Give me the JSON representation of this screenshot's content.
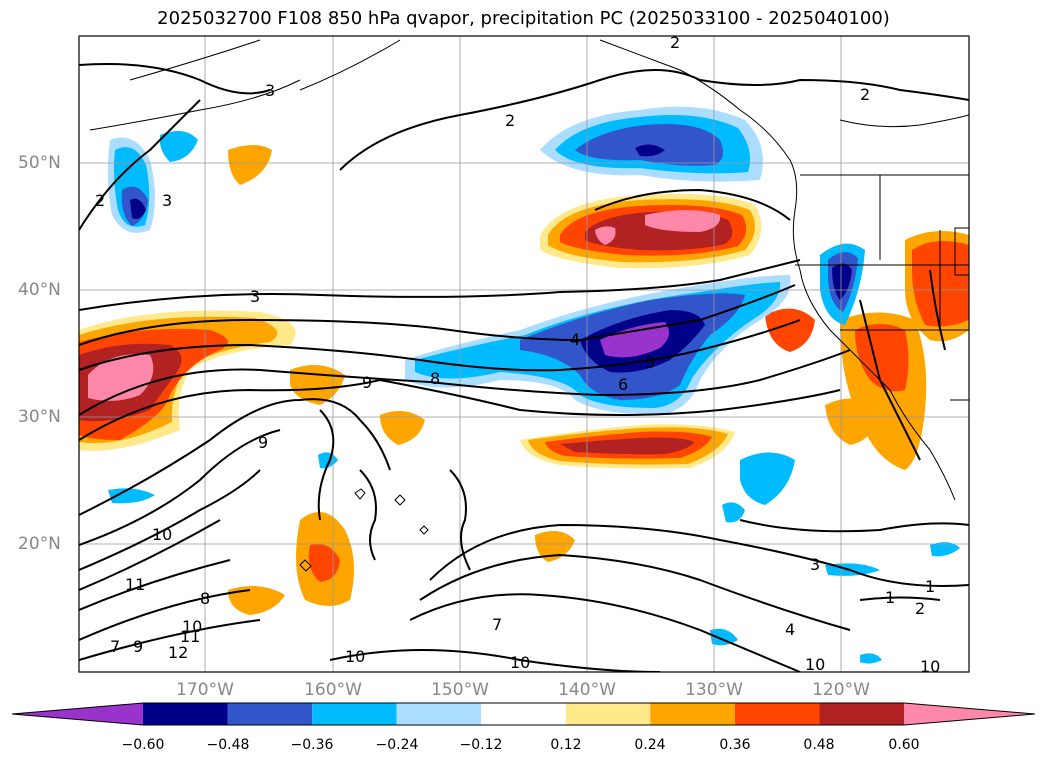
{
  "title": "2025032700 F108 850 hPa qvapor, precipitation PC (2025033100 - 2025040100)",
  "lat_labels": [
    "50°N",
    "40°N",
    "30°N",
    "20°N"
  ],
  "lon_labels": [
    "170°W",
    "160°W",
    "150°W",
    "140°W",
    "130°W",
    "120°W"
  ],
  "contour_labels": [
    "2",
    "3",
    "2",
    "2",
    "3",
    "2",
    "3",
    "4",
    "5",
    "6",
    "8",
    "9",
    "9",
    "10",
    "11",
    "8",
    "10",
    "11",
    "12",
    "7",
    "9",
    "10",
    "10",
    "7",
    "3",
    "4",
    "1",
    "2",
    "10",
    "1",
    "10"
  ],
  "colorbar": {
    "ticks": [
      "−0.60",
      "−0.48",
      "−0.36",
      "−0.24",
      "−0.12",
      "0.12",
      "0.24",
      "0.36",
      "0.48",
      "0.60"
    ],
    "colors": [
      "#9933cc",
      "#000088",
      "#3355cc",
      "#00bbff",
      "#aaddff",
      "#ffffff",
      "#ffe98a",
      "#ffa500",
      "#ff4500",
      "#b22222",
      "#ff88aa"
    ]
  }
}
